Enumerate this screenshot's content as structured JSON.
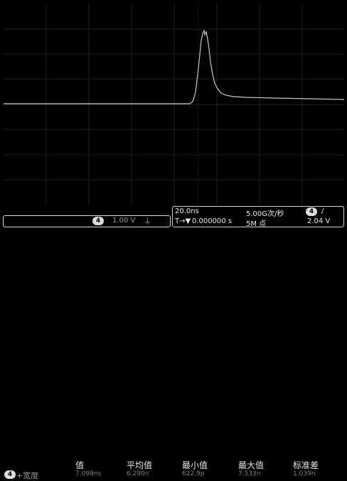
{
  "channel": {
    "number": "4",
    "scale": "1.00 V",
    "coupling_icon": "ground-coupling-icon"
  },
  "timebase": {
    "scale": "20.0ns",
    "position": "0.000000 s",
    "sample_rate": "5.00G次/秒",
    "record_length": "5M 点"
  },
  "trigger": {
    "channel": "4",
    "slope": "/",
    "level": "2.04 V"
  },
  "measurement": {
    "channel": "4",
    "name": "+宽度",
    "headers": [
      "值",
      "平均值",
      "最小值",
      "最大值",
      "标准差"
    ],
    "values": [
      "7.098ns",
      "6.290n",
      "622.9p",
      "7.533n",
      "1.039n"
    ]
  },
  "colors": {
    "trace": "#c8c8c8",
    "grid": "#2a2a2a",
    "background": "#000000"
  }
}
